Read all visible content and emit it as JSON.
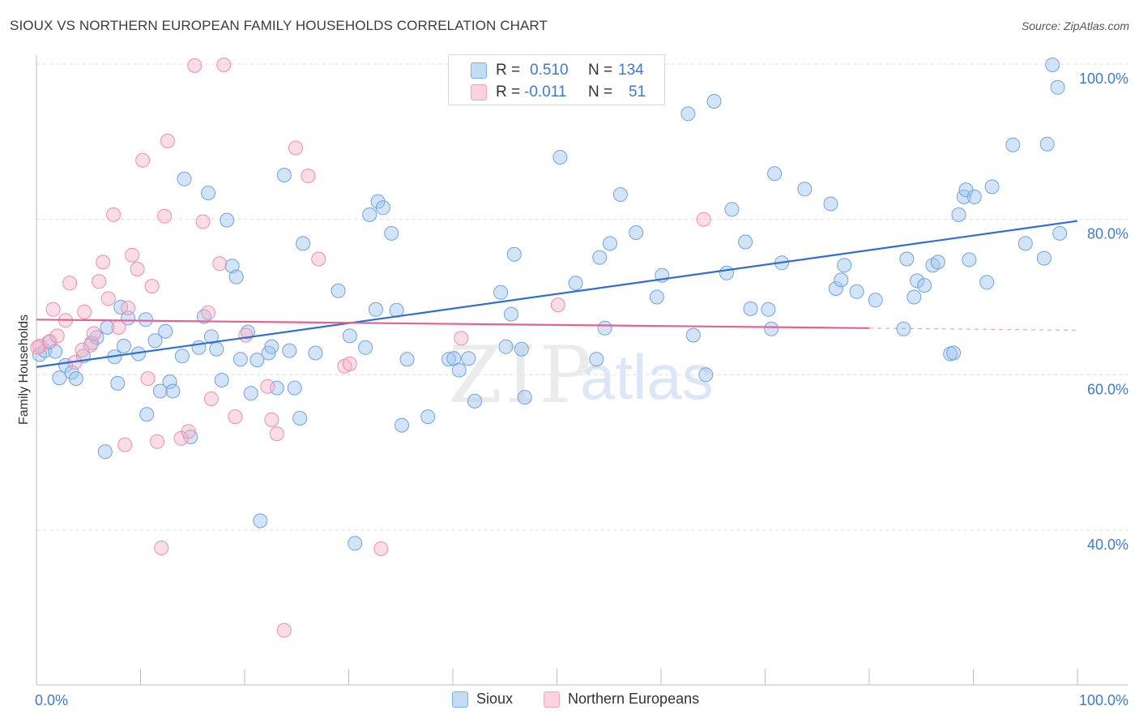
{
  "title": "SIOUX VS NORTHERN EUROPEAN FAMILY HOUSEHOLDS CORRELATION CHART",
  "source": "Source: ZipAtlas.com",
  "watermark": {
    "zip": "ZIP",
    "atlas": "atlas"
  },
  "stats": {
    "rows": [
      {
        "r_label": "R =",
        "r_value": "0.510",
        "n_label": "N =",
        "n_value": "134",
        "color": "#9dc3ef"
      },
      {
        "r_label": "R =",
        "r_value": "-0.011",
        "n_label": "N =",
        "n_value": "51",
        "color": "#f6b3c8"
      }
    ]
  },
  "legend": [
    {
      "label": "Sioux",
      "color": "#9dc3ef"
    },
    {
      "label": "Northern Europeans",
      "color": "#f6b3c8"
    }
  ],
  "chart_data": {
    "type": "scatter",
    "title": "SIOUX VS NORTHERN EUROPEAN FAMILY HOUSEHOLDS CORRELATION CHART",
    "xlabel": "",
    "ylabel": "Family Households",
    "xlim": [
      0,
      100
    ],
    "ylim": [
      18,
      102
    ],
    "x_ticks": [
      "0.0%",
      "100.0%"
    ],
    "y_ticks": [
      {
        "value": 40,
        "label": "40.0%"
      },
      {
        "value": 60,
        "label": "60.0%"
      },
      {
        "value": 80,
        "label": "80.0%"
      },
      {
        "value": 100,
        "label": "100.0%"
      }
    ],
    "grid": true,
    "legend_position": "bottom",
    "series": [
      {
        "name": "Sioux",
        "color": "#9dc3ef",
        "stroke": "#6fa3e0",
        "trend": {
          "x": [
            0,
            100
          ],
          "y": [
            61.0,
            79.8
          ],
          "color": "#2f6fd1"
        },
        "points": [
          [
            0.3,
            62.6
          ],
          [
            0.8,
            63.1
          ],
          [
            1.2,
            64.2
          ],
          [
            1.8,
            63.0
          ],
          [
            2.2,
            59.6
          ],
          [
            2.8,
            61.2
          ],
          [
            3.4,
            60.3
          ],
          [
            3.8,
            59.5
          ],
          [
            4.5,
            62.4
          ],
          [
            5.3,
            64.1
          ],
          [
            5.8,
            64.8
          ],
          [
            6.6,
            50.1
          ],
          [
            6.8,
            66.1
          ],
          [
            7.5,
            62.3
          ],
          [
            7.8,
            58.9
          ],
          [
            8.1,
            68.7
          ],
          [
            8.4,
            63.7
          ],
          [
            8.8,
            67.3
          ],
          [
            9.8,
            62.7
          ],
          [
            10.5,
            67.1
          ],
          [
            10.6,
            54.9
          ],
          [
            11.4,
            64.4
          ],
          [
            11.9,
            57.9
          ],
          [
            12.4,
            65.6
          ],
          [
            12.8,
            59.1
          ],
          [
            13.1,
            57.9
          ],
          [
            14.0,
            62.4
          ],
          [
            14.2,
            85.2
          ],
          [
            14.8,
            52.0
          ],
          [
            15.6,
            63.5
          ],
          [
            16.1,
            67.5
          ],
          [
            16.5,
            83.4
          ],
          [
            16.8,
            64.9
          ],
          [
            17.3,
            63.3
          ],
          [
            17.8,
            59.3
          ],
          [
            18.3,
            79.9
          ],
          [
            18.8,
            74.0
          ],
          [
            19.2,
            72.6
          ],
          [
            19.6,
            62.0
          ],
          [
            20.3,
            65.5
          ],
          [
            20.6,
            57.6
          ],
          [
            21.2,
            61.9
          ],
          [
            21.5,
            41.2
          ],
          [
            22.3,
            62.8
          ],
          [
            22.6,
            63.6
          ],
          [
            23.1,
            58.3
          ],
          [
            23.8,
            85.7
          ],
          [
            24.3,
            63.1
          ],
          [
            24.8,
            58.3
          ],
          [
            25.3,
            54.4
          ],
          [
            25.6,
            76.9
          ],
          [
            26.8,
            62.8
          ],
          [
            29.0,
            70.8
          ],
          [
            30.1,
            65.0
          ],
          [
            30.6,
            38.3
          ],
          [
            31.6,
            63.5
          ],
          [
            32.0,
            80.6
          ],
          [
            32.6,
            68.4
          ],
          [
            32.8,
            82.3
          ],
          [
            33.3,
            81.5
          ],
          [
            34.1,
            78.2
          ],
          [
            34.6,
            68.3
          ],
          [
            35.1,
            53.5
          ],
          [
            35.6,
            62.0
          ],
          [
            37.6,
            54.6
          ],
          [
            39.6,
            62.0
          ],
          [
            40.1,
            62.1
          ],
          [
            40.6,
            60.6
          ],
          [
            41.0,
            99.8
          ],
          [
            41.5,
            62.1
          ],
          [
            42.1,
            56.6
          ],
          [
            44.6,
            70.6
          ],
          [
            45.1,
            63.6
          ],
          [
            45.6,
            67.8
          ],
          [
            45.9,
            75.5
          ],
          [
            46.6,
            63.3
          ],
          [
            46.9,
            57.1
          ],
          [
            50.3,
            88.0
          ],
          [
            51.8,
            71.8
          ],
          [
            53.8,
            62.0
          ],
          [
            54.1,
            75.1
          ],
          [
            54.6,
            66.0
          ],
          [
            55.1,
            76.9
          ],
          [
            56.1,
            83.2
          ],
          [
            57.6,
            78.3
          ],
          [
            59.6,
            70.0
          ],
          [
            60.1,
            72.8
          ],
          [
            62.6,
            93.6
          ],
          [
            63.1,
            65.1
          ],
          [
            64.3,
            60.0
          ],
          [
            65.1,
            95.2
          ],
          [
            66.3,
            73.1
          ],
          [
            66.8,
            81.3
          ],
          [
            68.1,
            77.1
          ],
          [
            68.6,
            68.5
          ],
          [
            70.3,
            68.4
          ],
          [
            70.6,
            65.9
          ],
          [
            70.9,
            85.9
          ],
          [
            71.6,
            74.4
          ],
          [
            73.8,
            83.9
          ],
          [
            76.3,
            82.0
          ],
          [
            76.8,
            71.1
          ],
          [
            77.3,
            72.2
          ],
          [
            77.6,
            74.1
          ],
          [
            78.8,
            70.7
          ],
          [
            80.6,
            69.6
          ],
          [
            83.3,
            65.9
          ],
          [
            83.6,
            74.9
          ],
          [
            84.3,
            70.0
          ],
          [
            84.6,
            72.1
          ],
          [
            85.3,
            71.5
          ],
          [
            86.1,
            74.1
          ],
          [
            86.6,
            74.5
          ],
          [
            87.8,
            62.7
          ],
          [
            88.1,
            62.8
          ],
          [
            88.6,
            80.6
          ],
          [
            89.1,
            82.9
          ],
          [
            89.3,
            83.8
          ],
          [
            89.6,
            74.8
          ],
          [
            90.1,
            82.9
          ],
          [
            91.3,
            71.9
          ],
          [
            91.8,
            84.2
          ],
          [
            93.8,
            89.6
          ],
          [
            95.0,
            76.9
          ],
          [
            96.8,
            75.0
          ],
          [
            97.1,
            89.7
          ],
          [
            97.6,
            99.9
          ],
          [
            98.1,
            97.0
          ],
          [
            98.3,
            78.2
          ]
        ]
      },
      {
        "name": "Northern Europeans",
        "color": "#f6b3c8",
        "stroke": "#ec8db0",
        "trend": {
          "x": [
            0,
            80
          ],
          "y": [
            67.1,
            66.0
          ],
          "color": "#e2638f",
          "dashed_to": 100
        },
        "points": [
          [
            0.3,
            63.7
          ],
          [
            1.3,
            64.3
          ],
          [
            1.6,
            68.4
          ],
          [
            2.0,
            65.0
          ],
          [
            2.8,
            67.0
          ],
          [
            3.2,
            71.8
          ],
          [
            3.7,
            61.6
          ],
          [
            4.4,
            63.2
          ],
          [
            4.6,
            68.1
          ],
          [
            5.2,
            63.8
          ],
          [
            5.5,
            65.3
          ],
          [
            6.0,
            72.0
          ],
          [
            6.4,
            74.5
          ],
          [
            6.9,
            69.8
          ],
          [
            7.4,
            80.6
          ],
          [
            7.9,
            66.1
          ],
          [
            8.5,
            51.0
          ],
          [
            8.8,
            68.6
          ],
          [
            9.2,
            75.4
          ],
          [
            9.7,
            73.6
          ],
          [
            10.2,
            87.6
          ],
          [
            10.7,
            59.5
          ],
          [
            11.1,
            71.4
          ],
          [
            11.6,
            51.4
          ],
          [
            12.0,
            37.7
          ],
          [
            12.3,
            80.4
          ],
          [
            12.6,
            90.1
          ],
          [
            13.9,
            51.8
          ],
          [
            14.6,
            52.7
          ],
          [
            15.2,
            99.8
          ],
          [
            16.0,
            79.7
          ],
          [
            16.5,
            68.0
          ],
          [
            16.8,
            56.9
          ],
          [
            17.6,
            74.3
          ],
          [
            18.0,
            99.9
          ],
          [
            19.1,
            54.6
          ],
          [
            20.1,
            65.1
          ],
          [
            22.2,
            58.5
          ],
          [
            22.6,
            54.2
          ],
          [
            23.1,
            52.4
          ],
          [
            23.8,
            27.1
          ],
          [
            24.9,
            89.2
          ],
          [
            26.1,
            85.6
          ],
          [
            27.1,
            74.9
          ],
          [
            29.6,
            61.1
          ],
          [
            30.1,
            61.4
          ],
          [
            33.1,
            37.6
          ],
          [
            40.8,
            64.7
          ],
          [
            50.1,
            69.0
          ],
          [
            64.1,
            80.0
          ],
          [
            0.1,
            63.5
          ]
        ]
      }
    ]
  }
}
